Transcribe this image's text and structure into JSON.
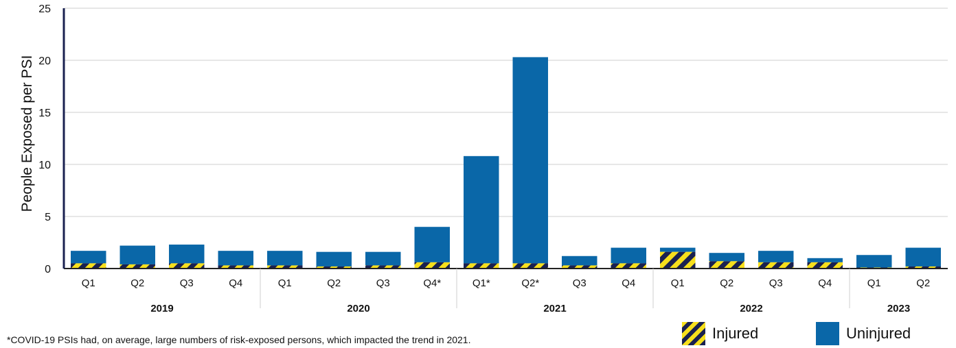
{
  "chart_data": {
    "type": "bar",
    "stacked": true,
    "ylabel": "People Exposed per PSI",
    "ylim": [
      0,
      25
    ],
    "yticks": [
      0,
      5,
      10,
      15,
      20,
      25
    ],
    "grid": true,
    "categories": [
      "Q1",
      "Q2",
      "Q3",
      "Q4",
      "Q1",
      "Q2",
      "Q3",
      "Q4*",
      "Q1*",
      "Q2*",
      "Q3",
      "Q4",
      "Q1",
      "Q2",
      "Q3",
      "Q4",
      "Q1",
      "Q2"
    ],
    "groups": [
      {
        "label": "2019",
        "count": 4
      },
      {
        "label": "2020",
        "count": 4
      },
      {
        "label": "2021",
        "count": 4
      },
      {
        "label": "2022",
        "count": 4
      },
      {
        "label": "2023",
        "count": 2
      }
    ],
    "series": [
      {
        "name": "Injured",
        "color": "#1a2150",
        "pattern": "yellow-navy-stripes",
        "values": [
          0.5,
          0.4,
          0.5,
          0.3,
          0.3,
          0.2,
          0.3,
          0.6,
          0.5,
          0.5,
          0.3,
          0.5,
          1.6,
          0.7,
          0.6,
          0.6,
          0.1,
          0.2
        ]
      },
      {
        "name": "Uninjured",
        "color": "#0a67a8",
        "values": [
          1.2,
          1.8,
          1.8,
          1.4,
          1.4,
          1.4,
          1.3,
          3.4,
          10.3,
          19.8,
          0.9,
          1.5,
          0.4,
          0.8,
          1.1,
          0.4,
          1.2,
          1.8
        ]
      }
    ],
    "legend": "bottom-right"
  },
  "footnote": "*COVID-19 PSIs had, on average, large numbers of risk-exposed persons, which impacted the trend in 2021.",
  "legend_items": {
    "injured": "Injured",
    "uninjured": "Uninjured"
  }
}
